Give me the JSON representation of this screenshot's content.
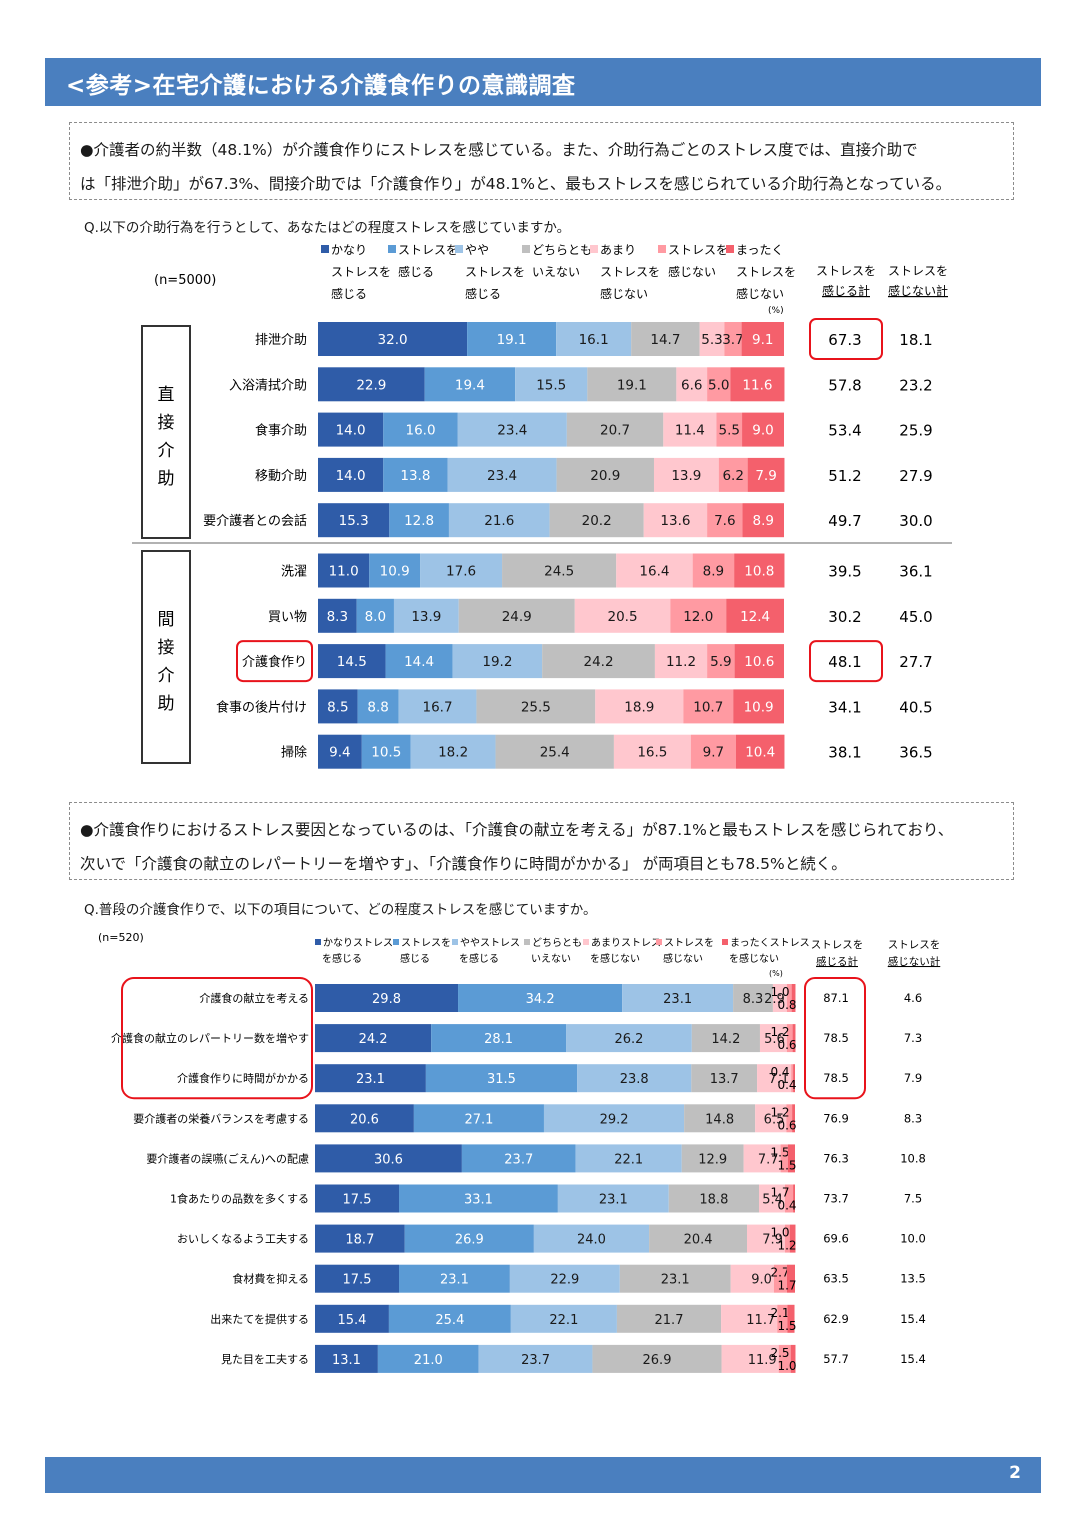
{
  "header": {
    "title": "<参考>在宅介護における介護食作りの意識調査"
  },
  "note1": {
    "line1": "●介護者の約半数（48.1%）が介護食作りにストレスを感じている。また、介助行為ごとのストレス度では、直接介助で",
    "line2": "は「排泄介助」が67.3%、間接介助では「介護食作り」が48.1%と、最もストレスを感じられている介助行為となっている。"
  },
  "note2": {
    "line1": "●介護食作りにおけるストレス要因となっているのは、「介護食の献立を考える」が87.1%と最もストレスを感じられており、",
    "line2": "次いで「介護食の献立のレパートリーを増やす」、「介護食作りに時間がかかる」 が両項目とも78.5%と続く。"
  },
  "page_number": "2",
  "colors": {
    "header": "#4a7fbf",
    "segments": [
      "#2f5ca8",
      "#5b9bd5",
      "#9dc3e6",
      "#bfbfbf",
      "#ffc7ce",
      "#ff9aa2",
      "#f4606c"
    ],
    "highlight": "#e8131b"
  },
  "chart_data": [
    {
      "type": "bar",
      "orientation": "horizontal",
      "stacked": true,
      "title": "Q.以下の介助行為を行うとして、あなたはどの程度ストレスを感じていますか。",
      "sample": "(n=5000)",
      "unit": "(%)",
      "legend": [
        [
          "かなり",
          "ストレスを",
          "感じる"
        ],
        [
          "ストレスを",
          "感じる"
        ],
        [
          "やや",
          "ストレスを",
          "感じる"
        ],
        [
          "どちらとも",
          "いえない"
        ],
        [
          "あまり",
          "ストレスを",
          "感じない"
        ],
        [
          "ストレスを",
          "感じない"
        ],
        [
          "まったく",
          "ストレスを",
          "感じない"
        ]
      ],
      "series": [
        {
          "name": "かなりストレスを感じる",
          "values": [
            32.0,
            22.9,
            14.0,
            14.0,
            15.3,
            11.0,
            8.3,
            14.5,
            8.5,
            9.4
          ]
        },
        {
          "name": "ストレスを感じる",
          "values": [
            19.1,
            19.4,
            16.0,
            13.8,
            12.8,
            10.9,
            8.0,
            14.4,
            8.8,
            10.5
          ]
        },
        {
          "name": "ややストレスを感じる",
          "values": [
            16.1,
            15.5,
            23.4,
            23.4,
            21.6,
            17.6,
            13.9,
            19.2,
            16.7,
            18.2
          ]
        },
        {
          "name": "どちらともいえない",
          "values": [
            14.7,
            19.1,
            20.7,
            20.9,
            20.2,
            24.5,
            24.9,
            24.2,
            25.5,
            25.4
          ]
        },
        {
          "name": "あまりストレスを感じない",
          "values": [
            5.3,
            6.6,
            11.4,
            13.9,
            13.6,
            16.4,
            20.5,
            11.2,
            18.9,
            16.5
          ]
        },
        {
          "name": "ストレスを感じない",
          "values": [
            3.7,
            5.0,
            5.5,
            6.2,
            7.6,
            8.9,
            12.0,
            5.9,
            10.7,
            9.7
          ]
        },
        {
          "name": "まったくストレスを感じない",
          "values": [
            9.1,
            11.6,
            9.0,
            7.9,
            8.9,
            10.8,
            12.4,
            10.6,
            10.9,
            10.4
          ]
        }
      ],
      "data_labels": [
        [
          "32.0",
          "19.1",
          "16.1",
          "14.7",
          "5.3",
          "3.7",
          "9.1"
        ],
        [
          "22.9",
          "19.4",
          "15.5",
          "19.1",
          "6.6",
          "5.0",
          "11.6"
        ],
        [
          "14.0",
          "16.0",
          "23.4",
          "20.7",
          "11.4",
          "5.5",
          "9.0"
        ],
        [
          "14.0",
          "13.8",
          "23.4",
          "20.9",
          "13.9",
          "6.2",
          "7.9"
        ],
        [
          "15.3",
          "12.8",
          "21.6",
          "20.2",
          "13.6",
          "7.6",
          "8.9"
        ],
        [
          "11.0",
          "10.9",
          "17.6",
          "24.5",
          "16.4",
          "8.9",
          "10.8"
        ],
        [
          "8.3",
          "8.0",
          "13.9",
          "24.9",
          "20.5",
          "12.0",
          "12.4"
        ],
        [
          "14.5",
          "14.4",
          "19.2",
          "24.2",
          "11.2",
          "5.9",
          "10.6"
        ],
        [
          "8.5",
          "8.8",
          "16.7",
          "25.5",
          "18.9",
          "10.7",
          "10.9"
        ],
        [
          "9.4",
          "10.5",
          "18.2",
          "25.4",
          "16.5",
          "9.7",
          "10.4"
        ]
      ],
      "categories": [
        "排泄介助",
        "入浴清拭介助",
        "食事介助",
        "移動介助",
        "要介護者との会話",
        "洗濯",
        "買い物",
        "介護食作り",
        "食事の後片付け",
        "掃除"
      ],
      "groups": [
        {
          "label": "直接介助",
          "chars": [
            "直",
            "接",
            "介",
            "助"
          ],
          "rows": [
            0,
            4
          ]
        },
        {
          "label": "間接介助",
          "chars": [
            "間",
            "接",
            "介",
            "助"
          ],
          "rows": [
            5,
            9
          ]
        }
      ],
      "totals": {
        "stress_header": [
          "ストレスを",
          "感じる計"
        ],
        "nostress_header": [
          "ストレスを",
          "感じない計"
        ],
        "stress": [
          "67.3",
          "57.8",
          "53.4",
          "51.2",
          "49.7",
          "39.5",
          "30.2",
          "48.1",
          "34.1",
          "38.1"
        ],
        "nostress": [
          "18.1",
          "23.2",
          "25.9",
          "27.9",
          "30.0",
          "36.1",
          "45.0",
          "27.7",
          "40.5",
          "36.5"
        ]
      },
      "highlights": {
        "stress_total_rows": [
          0,
          7
        ],
        "category_rows": [
          7
        ]
      },
      "xlim": [
        0,
        100
      ]
    },
    {
      "type": "bar",
      "orientation": "horizontal",
      "stacked": true,
      "title": "Q.普段の介護食作りで、以下の項目について、どの程度ストレスを感じていますか。",
      "sample": "(n=520)",
      "unit": "(%)",
      "legend": [
        [
          "かなりストレス",
          "を感じる"
        ],
        [
          "ストレスを",
          "感じる"
        ],
        [
          "ややストレス",
          "を感じる"
        ],
        [
          "どちらとも",
          "いえない"
        ],
        [
          "あまりストレス",
          "を感じない"
        ],
        [
          "ストレスを",
          "感じない"
        ],
        [
          "まったくストレス",
          "を感じない"
        ]
      ],
      "series": [
        {
          "name": "かなりストレスを感じる",
          "values": [
            29.8,
            24.2,
            23.1,
            20.6,
            30.6,
            17.5,
            18.7,
            17.5,
            15.4,
            13.1
          ]
        },
        {
          "name": "ストレスを感じる",
          "values": [
            34.2,
            28.1,
            31.5,
            27.1,
            23.7,
            33.1,
            26.9,
            23.1,
            25.4,
            21.0
          ]
        },
        {
          "name": "ややストレスを感じる",
          "values": [
            23.1,
            26.2,
            23.8,
            29.2,
            22.1,
            23.1,
            24.0,
            22.9,
            22.1,
            23.7
          ]
        },
        {
          "name": "どちらともいえない",
          "values": [
            8.3,
            14.2,
            13.7,
            14.8,
            12.9,
            18.8,
            20.4,
            23.1,
            21.7,
            26.9
          ]
        },
        {
          "name": "あまりストレスを感じない",
          "values": [
            2.9,
            5.6,
            7.1,
            6.5,
            7.7,
            5.4,
            7.9,
            9.0,
            11.7,
            11.9
          ]
        },
        {
          "name": "ストレスを感じない",
          "values": [
            1.0,
            1.2,
            0.4,
            1.2,
            1.5,
            1.7,
            1.0,
            2.7,
            2.1,
            2.5
          ]
        },
        {
          "name": "まったくストレスを感じない",
          "values": [
            0.8,
            0.6,
            0.4,
            0.6,
            1.5,
            0.4,
            1.2,
            1.7,
            1.5,
            1.0
          ]
        }
      ],
      "data_labels": [
        [
          "29.8",
          "34.2",
          "23.1",
          "8.3",
          "2.9",
          "1.0",
          "0.8"
        ],
        [
          "24.2",
          "28.1",
          "26.2",
          "14.2",
          "5.6",
          "1.2",
          "0.6"
        ],
        [
          "23.1",
          "31.5",
          "23.8",
          "13.7",
          "7.1",
          "0.4",
          "0.4"
        ],
        [
          "20.6",
          "27.1",
          "29.2",
          "14.8",
          "6.5",
          "1.2",
          "0.6"
        ],
        [
          "30.6",
          "23.7",
          "22.1",
          "12.9",
          "7.7",
          "1.5",
          "1.5"
        ],
        [
          "17.5",
          "33.1",
          "23.1",
          "18.8",
          "5.4",
          "1.7",
          "0.4"
        ],
        [
          "18.7",
          "26.9",
          "24.0",
          "20.4",
          "7.9",
          "1.0",
          "1.2"
        ],
        [
          "17.5",
          "23.1",
          "22.9",
          "23.1",
          "9.0",
          "2.7",
          "1.7"
        ],
        [
          "15.4",
          "25.4",
          "22.1",
          "21.7",
          "11.7",
          "2.1",
          "1.5"
        ],
        [
          "13.1",
          "21.0",
          "23.7",
          "26.9",
          "11.9",
          "2.5",
          "1.0"
        ]
      ],
      "categories": [
        "介護食の献立を考える",
        "介護食の献立のレパートリー数を増やす",
        "介護食作りに時間がかかる",
        "要介護者の栄養バランスを考慮する",
        "要介護者の誤嚥(ごえん)への配慮",
        "1食あたりの品数を多くする",
        "おいしくなるよう工夫する",
        "食材費を抑える",
        "出来たてを提供する",
        "見た目を工夫する"
      ],
      "totals": {
        "stress_header": [
          "ストレスを",
          "感じる計"
        ],
        "nostress_header": [
          "ストレスを",
          "感じない計"
        ],
        "stress": [
          "87.1",
          "78.5",
          "78.5",
          "76.9",
          "76.3",
          "73.7",
          "69.6",
          "63.5",
          "62.9",
          "57.7"
        ],
        "nostress": [
          "4.6",
          "7.3",
          "7.9",
          "8.3",
          "10.8",
          "7.5",
          "10.0",
          "13.5",
          "15.4",
          "15.4"
        ]
      },
      "highlights": {
        "stress_total_group": [
          0,
          2
        ],
        "category_group": [
          0,
          2
        ]
      },
      "xlim": [
        0,
        100
      ]
    }
  ]
}
